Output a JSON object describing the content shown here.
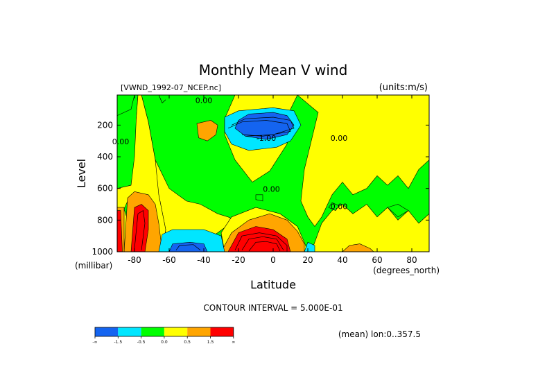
{
  "chart_data": {
    "type": "heatmap",
    "title": "Monthly Mean V wind",
    "dataset_label": "[VWND_1992-07_NCEP.nc]",
    "units_label": "(units:m/s)",
    "xlabel": "Latitude",
    "ylabel": "Level",
    "x_units": "(degrees_north)",
    "y_units": "(millibar)",
    "xlim": [
      -90,
      90
    ],
    "ylim": [
      1000,
      10
    ],
    "x_ticks": [
      -80,
      -60,
      -40,
      -20,
      0,
      20,
      40,
      60,
      80
    ],
    "y_ticks": [
      200,
      400,
      600,
      800,
      1000
    ],
    "x_tick_labels": [
      "-80",
      "-60",
      "-40",
      "-20",
      "0",
      "20",
      "40",
      "60",
      "80"
    ],
    "y_tick_labels": [
      "200",
      "400",
      "600",
      "800",
      "1000"
    ],
    "contour_interval_label": "CONTOUR INTERVAL = 5.000E-01",
    "footer_label": "(mean) lon:0..357.5",
    "contour_labels": [
      {
        "text": "0.00",
        "x": -40,
        "y": 60
      },
      {
        "text": "0.00",
        "x": -88,
        "y": 320
      },
      {
        "text": "-1.00",
        "x": -4,
        "y": 300
      },
      {
        "text": "0.00",
        "x": -1,
        "y": 620
      },
      {
        "text": "0.00",
        "x": 38,
        "y": 730
      },
      {
        "text": "0.00",
        "x": 38,
        "y": 300
      }
    ],
    "colorbar": {
      "labels": [
        "-∞",
        "-1.5",
        "-0.5",
        "0.0",
        "0.5",
        "1.5",
        "∞"
      ],
      "colors": [
        "#1464f0",
        "#00e6ff",
        "#00ff00",
        "#ffff00",
        "#ffa500",
        "#ff0000"
      ]
    },
    "regions": [
      {
        "color": "#00ff00",
        "points": [
          [
            -90,
            10
          ],
          [
            90,
            10
          ],
          [
            90,
            1000
          ],
          [
            -90,
            1000
          ]
        ]
      },
      {
        "color": "#ffff00",
        "points": [
          [
            -78,
            10
          ],
          [
            -22,
            10
          ],
          [
            -28,
            160
          ],
          [
            -28,
            260
          ],
          [
            -22,
            420
          ],
          [
            -12,
            560
          ],
          [
            -2,
            490
          ],
          [
            8,
            320
          ],
          [
            10,
            100
          ],
          [
            14,
            10
          ],
          [
            -76,
            10
          ],
          [
            -72,
            180
          ],
          [
            -68,
            420
          ],
          [
            -60,
            600
          ],
          [
            -50,
            680
          ],
          [
            -42,
            700
          ],
          [
            -32,
            760
          ],
          [
            -26,
            780
          ],
          [
            -22,
            800
          ],
          [
            -32,
            880
          ],
          [
            -44,
            960
          ],
          [
            -58,
            1000
          ],
          [
            -64,
            1000
          ],
          [
            -62,
            860
          ],
          [
            -66,
            640
          ],
          [
            -72,
            500
          ],
          [
            -76,
            350
          ],
          [
            -79,
            160
          ]
        ]
      },
      {
        "color": "#ffff00",
        "points": [
          [
            -78,
            10
          ],
          [
            -76,
            10
          ],
          [
            -72,
            180
          ],
          [
            -68,
            420
          ],
          [
            -66,
            640
          ],
          [
            -62,
            860
          ],
          [
            -64,
            1000
          ],
          [
            -90,
            1000
          ],
          [
            -90,
            600
          ],
          [
            -82,
            580
          ],
          [
            -80,
            400
          ],
          [
            -79,
            160
          ]
        ]
      },
      {
        "color": "#ffff00",
        "points": [
          [
            14,
            10
          ],
          [
            90,
            10
          ],
          [
            90,
            420
          ],
          [
            84,
            480
          ],
          [
            78,
            600
          ],
          [
            72,
            520
          ],
          [
            66,
            580
          ],
          [
            60,
            520
          ],
          [
            54,
            600
          ],
          [
            46,
            640
          ],
          [
            40,
            560
          ],
          [
            34,
            640
          ],
          [
            28,
            780
          ],
          [
            24,
            840
          ],
          [
            20,
            780
          ],
          [
            16,
            680
          ],
          [
            18,
            480
          ],
          [
            22,
            300
          ],
          [
            26,
            120
          ]
        ]
      },
      {
        "color": "#ffff00",
        "points": [
          [
            22,
            1000
          ],
          [
            28,
            820
          ],
          [
            34,
            740
          ],
          [
            40,
            700
          ],
          [
            46,
            760
          ],
          [
            54,
            700
          ],
          [
            60,
            780
          ],
          [
            66,
            720
          ],
          [
            72,
            800
          ],
          [
            78,
            740
          ],
          [
            84,
            820
          ],
          [
            90,
            760
          ],
          [
            90,
            1000
          ]
        ]
      },
      {
        "color": "#ffff00",
        "points": [
          [
            -24,
            780
          ],
          [
            -10,
            720
          ],
          [
            4,
            760
          ],
          [
            14,
            840
          ],
          [
            18,
            940
          ],
          [
            20,
            1000
          ],
          [
            -28,
            1000
          ],
          [
            -30,
            880
          ]
        ]
      },
      {
        "color": "#00ff00",
        "points": [
          [
            -90,
            10
          ],
          [
            -80,
            10
          ],
          [
            -82,
            100
          ],
          [
            -90,
            140
          ]
        ]
      },
      {
        "color": "#00ff00",
        "points": [
          [
            34,
            690
          ],
          [
            38,
            710
          ],
          [
            36,
            740
          ],
          [
            32,
            720
          ]
        ]
      },
      {
        "color": "#00ff00",
        "points": [
          [
            -84,
            680
          ],
          [
            -80,
            640
          ],
          [
            -78,
            700
          ],
          [
            -80,
            780
          ],
          [
            -84,
            800
          ],
          [
            -86,
            730
          ]
        ]
      },
      {
        "color": "#00ff00",
        "points": [
          [
            -10,
            640
          ],
          [
            -6,
            640
          ],
          [
            -6,
            680
          ],
          [
            -10,
            670
          ]
        ]
      },
      {
        "color": "#00ff00",
        "points": [
          [
            66,
            720
          ],
          [
            72,
            700
          ],
          [
            78,
            740
          ],
          [
            72,
            780
          ]
        ]
      },
      {
        "color": "#ffa500",
        "points": [
          [
            -44,
            190
          ],
          [
            -36,
            170
          ],
          [
            -32,
            200
          ],
          [
            -33,
            260
          ],
          [
            -38,
            300
          ],
          [
            -43,
            280
          ]
        ]
      },
      {
        "color": "#ffa500",
        "points": [
          [
            -30,
            1000
          ],
          [
            -24,
            880
          ],
          [
            -14,
            800
          ],
          [
            -2,
            760
          ],
          [
            8,
            800
          ],
          [
            14,
            870
          ],
          [
            18,
            950
          ],
          [
            18,
            1000
          ]
        ]
      },
      {
        "color": "#ffa500",
        "points": [
          [
            -86,
            1000
          ],
          [
            -84,
            660
          ],
          [
            -80,
            620
          ],
          [
            -72,
            640
          ],
          [
            -68,
            700
          ],
          [
            -66,
            820
          ],
          [
            -64,
            1000
          ]
        ]
      },
      {
        "color": "#ffa500",
        "points": [
          [
            -90,
            720
          ],
          [
            -86,
            720
          ],
          [
            -86,
            1000
          ],
          [
            -90,
            1000
          ]
        ]
      },
      {
        "color": "#ffa500",
        "points": [
          [
            -64,
            1000
          ],
          [
            -64,
            920
          ],
          [
            -60,
            880
          ],
          [
            -58,
            940
          ],
          [
            -60,
            1000
          ]
        ]
      },
      {
        "color": "#ffa500",
        "points": [
          [
            40,
            1000
          ],
          [
            44,
            960
          ],
          [
            50,
            950
          ],
          [
            56,
            980
          ],
          [
            58,
            1000
          ]
        ]
      },
      {
        "color": "#ff0000",
        "points": [
          [
            -26,
            1000
          ],
          [
            -20,
            880
          ],
          [
            -10,
            840
          ],
          [
            0,
            860
          ],
          [
            8,
            920
          ],
          [
            10,
            1000
          ]
        ]
      },
      {
        "color": "#ff0000",
        "points": [
          [
            -82,
            1000
          ],
          [
            -80,
            720
          ],
          [
            -76,
            700
          ],
          [
            -72,
            740
          ],
          [
            -72,
            860
          ],
          [
            -74,
            1000
          ]
        ]
      },
      {
        "color": "#ff0000",
        "points": [
          [
            -90,
            740
          ],
          [
            -88,
            740
          ],
          [
            -87,
            1000
          ],
          [
            -90,
            1000
          ]
        ]
      },
      {
        "color": "#00e6ff",
        "points": [
          [
            -28,
            150
          ],
          [
            -20,
            110
          ],
          [
            0,
            90
          ],
          [
            12,
            110
          ],
          [
            16,
            200
          ],
          [
            10,
            300
          ],
          [
            2,
            340
          ],
          [
            -14,
            360
          ],
          [
            -24,
            320
          ],
          [
            -28,
            240
          ]
        ]
      },
      {
        "color": "#00e6ff",
        "points": [
          [
            -66,
            1000
          ],
          [
            -64,
            890
          ],
          [
            -58,
            860
          ],
          [
            -40,
            860
          ],
          [
            -30,
            900
          ],
          [
            -28,
            1000
          ]
        ]
      },
      {
        "color": "#00e6ff",
        "points": [
          [
            18,
            1000
          ],
          [
            20,
            940
          ],
          [
            24,
            960
          ],
          [
            24,
            1000
          ]
        ]
      },
      {
        "color": "#1464f0",
        "points": [
          [
            -20,
            170
          ],
          [
            -14,
            130
          ],
          [
            0,
            120
          ],
          [
            8,
            140
          ],
          [
            12,
            200
          ],
          [
            8,
            260
          ],
          [
            -4,
            290
          ],
          [
            -16,
            270
          ],
          [
            -22,
            220
          ]
        ]
      },
      {
        "color": "#1464f0",
        "points": [
          [
            -60,
            1000
          ],
          [
            -58,
            950
          ],
          [
            -48,
            940
          ],
          [
            -40,
            950
          ],
          [
            -38,
            1000
          ]
        ]
      }
    ],
    "contour_lines": [
      [
        [
          -26,
          220
        ],
        [
          -18,
          180
        ],
        [
          -4,
          170
        ],
        [
          8,
          190
        ],
        [
          10,
          240
        ],
        [
          -6,
          270
        ],
        [
          -18,
          260
        ]
      ],
      [
        [
          -24,
          200
        ],
        [
          -16,
          160
        ],
        [
          0,
          150
        ],
        [
          10,
          170
        ],
        [
          12,
          220
        ],
        [
          0,
          260
        ],
        [
          -16,
          270
        ]
      ],
      [
        [
          -22,
          990
        ],
        [
          -18,
          900
        ],
        [
          -8,
          880
        ],
        [
          2,
          900
        ],
        [
          8,
          960
        ],
        [
          8,
          1000
        ]
      ],
      [
        [
          -18,
          990
        ],
        [
          -14,
          920
        ],
        [
          -6,
          905
        ],
        [
          2,
          920
        ],
        [
          6,
          990
        ]
      ],
      [
        [
          -14,
          995
        ],
        [
          -10,
          940
        ],
        [
          -4,
          935
        ],
        [
          2,
          950
        ],
        [
          4,
          995
        ]
      ],
      [
        [
          -80,
          980
        ],
        [
          -78,
          760
        ],
        [
          -75,
          740
        ],
        [
          -74,
          820
        ],
        [
          -76,
          990
        ]
      ],
      [
        [
          -56,
          990
        ],
        [
          -54,
          960
        ],
        [
          -46,
          955
        ],
        [
          -42,
          990
        ]
      ],
      [
        [
          -66,
          10
        ],
        [
          -64,
          60
        ],
        [
          -62,
          40
        ]
      ]
    ]
  }
}
